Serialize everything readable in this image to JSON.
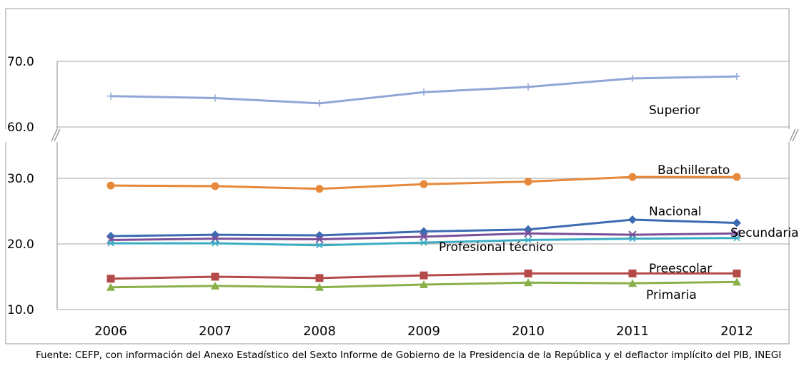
{
  "chart_data": {
    "type": "line",
    "categories": [
      "2006",
      "2007",
      "2008",
      "2009",
      "2010",
      "2011",
      "2012"
    ],
    "axis_break": {
      "lower_range": [
        10.0,
        30.0
      ],
      "upper_range": [
        60.0,
        70.0
      ]
    },
    "y_tick_labels": [
      "10.0",
      "20.0",
      "30.0",
      "60.0",
      "70.0"
    ],
    "grid": "horizontal",
    "series": [
      {
        "name": "Superior",
        "color": "#8fa7d6",
        "marker": "plus",
        "values": [
          64.7,
          64.4,
          63.6,
          65.3,
          66.1,
          67.4,
          67.7
        ]
      },
      {
        "name": "Bachillerato",
        "color": "#e8883a",
        "marker": "circle",
        "values": [
          28.9,
          28.8,
          28.4,
          29.1,
          29.5,
          30.2,
          30.2
        ]
      },
      {
        "name": "Nacional",
        "color": "#3b6bb2",
        "marker": "diamond",
        "values": [
          21.2,
          21.4,
          21.3,
          21.9,
          22.2,
          23.7,
          23.2
        ]
      },
      {
        "name": "Secundaria",
        "color": "#7a4f9a",
        "marker": "x",
        "values": [
          20.6,
          20.8,
          20.7,
          21.1,
          21.6,
          21.4,
          21.6
        ]
      },
      {
        "name": "Profesional técnico",
        "color": "#3aacc4",
        "marker": "asterisk",
        "values": [
          20.1,
          20.1,
          19.8,
          20.2,
          20.6,
          20.8,
          20.9
        ]
      },
      {
        "name": "Preescolar",
        "color": "#b54a4a",
        "marker": "square",
        "values": [
          14.7,
          15.0,
          14.8,
          15.2,
          15.5,
          15.5,
          15.5
        ]
      },
      {
        "name": "Primaria",
        "color": "#8ab04a",
        "marker": "triangle",
        "values": [
          13.4,
          13.6,
          13.4,
          13.8,
          14.1,
          14.0,
          14.2
        ]
      }
    ]
  },
  "source_note": "Fuente: CEFP, con información del Anexo Estadístico del Sexto Informe de Gobierno de la Presidencia de la República y el deflactor implícito del PIB, INEGI"
}
